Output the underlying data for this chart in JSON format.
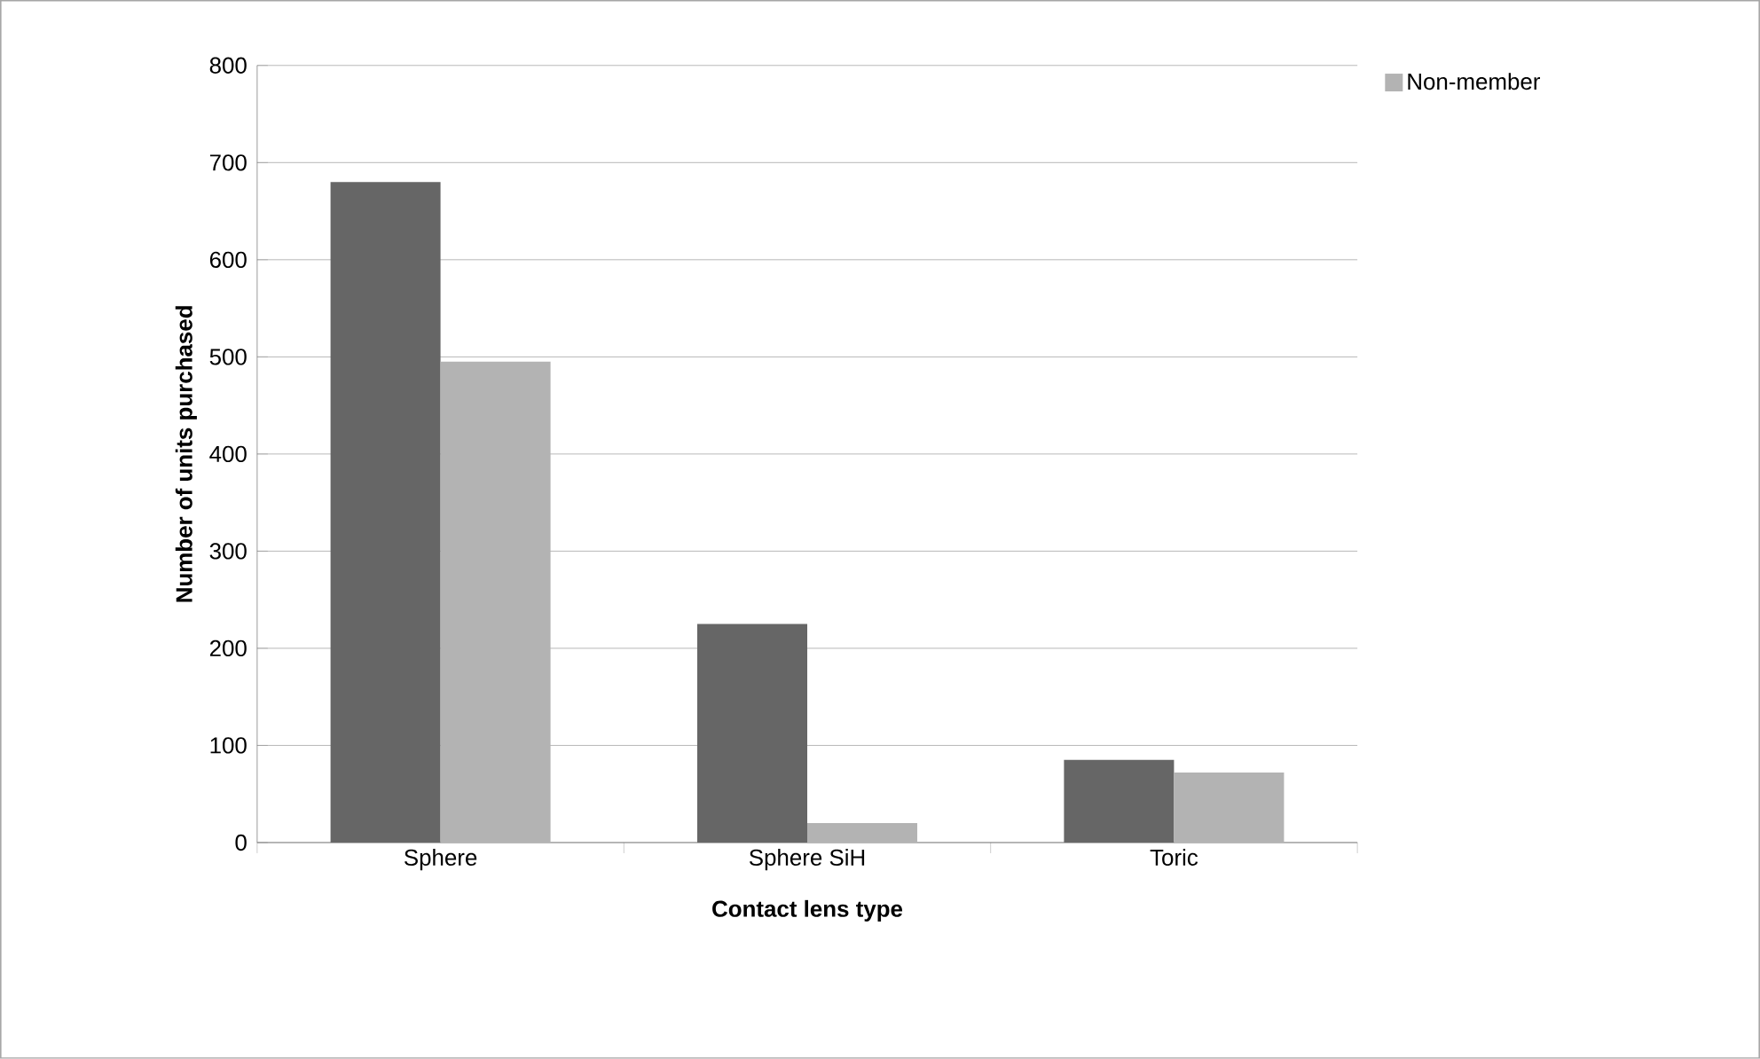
{
  "chart_data": {
    "type": "bar",
    "xlabel": "Contact lens type",
    "ylabel": "Number of units purchased",
    "categories": [
      "Sphere",
      "Sphere SiH",
      "Toric"
    ],
    "series": [
      {
        "color": "#666666",
        "values": [
          680,
          225,
          85
        ]
      },
      {
        "name": "Non-member",
        "color": "#b3b3b3",
        "values": [
          495,
          20,
          72
        ]
      }
    ],
    "ylim": [
      0,
      800
    ],
    "yticks": [
      0,
      100,
      200,
      300,
      400,
      500,
      600,
      700,
      800
    ],
    "grid": "y",
    "legend": "top right"
  }
}
